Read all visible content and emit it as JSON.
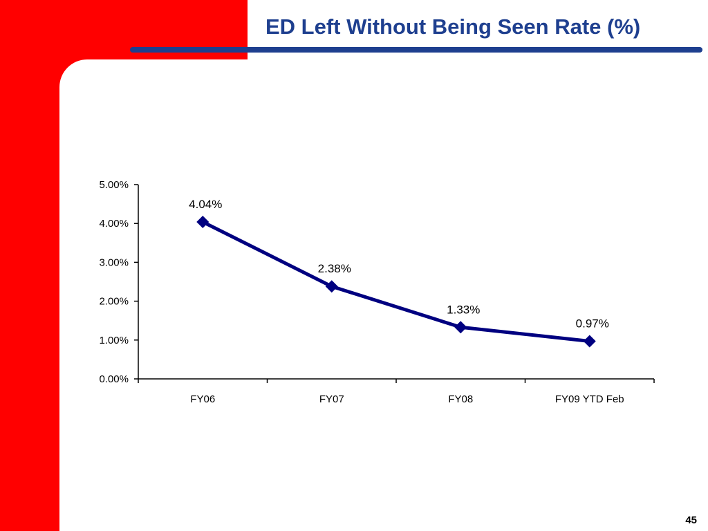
{
  "slide": {
    "title": "ED Left Without Being Seen Rate (%)",
    "page_number": "45"
  },
  "colors": {
    "brand_red": "#ff0000",
    "title_blue": "#1e3f8f",
    "series_navy": "#000080"
  },
  "chart_data": {
    "type": "line",
    "title": "",
    "xlabel": "",
    "ylabel": "",
    "categories": [
      "FY06",
      "FY07",
      "FY08",
      "FY09 YTD Feb"
    ],
    "series": [
      {
        "name": "",
        "values": [
          4.04,
          2.38,
          1.33,
          0.97
        ],
        "data_labels": [
          "4.04%",
          "2.38%",
          "1.33%",
          "0.97%"
        ],
        "marker": "diamond"
      }
    ],
    "ylim": [
      0,
      5
    ],
    "yticks": [
      0,
      1,
      2,
      3,
      4,
      5
    ],
    "ytick_labels": [
      "0.00%",
      "1.00%",
      "2.00%",
      "3.00%",
      "4.00%",
      "5.00%"
    ],
    "grid": false,
    "legend": "none"
  }
}
